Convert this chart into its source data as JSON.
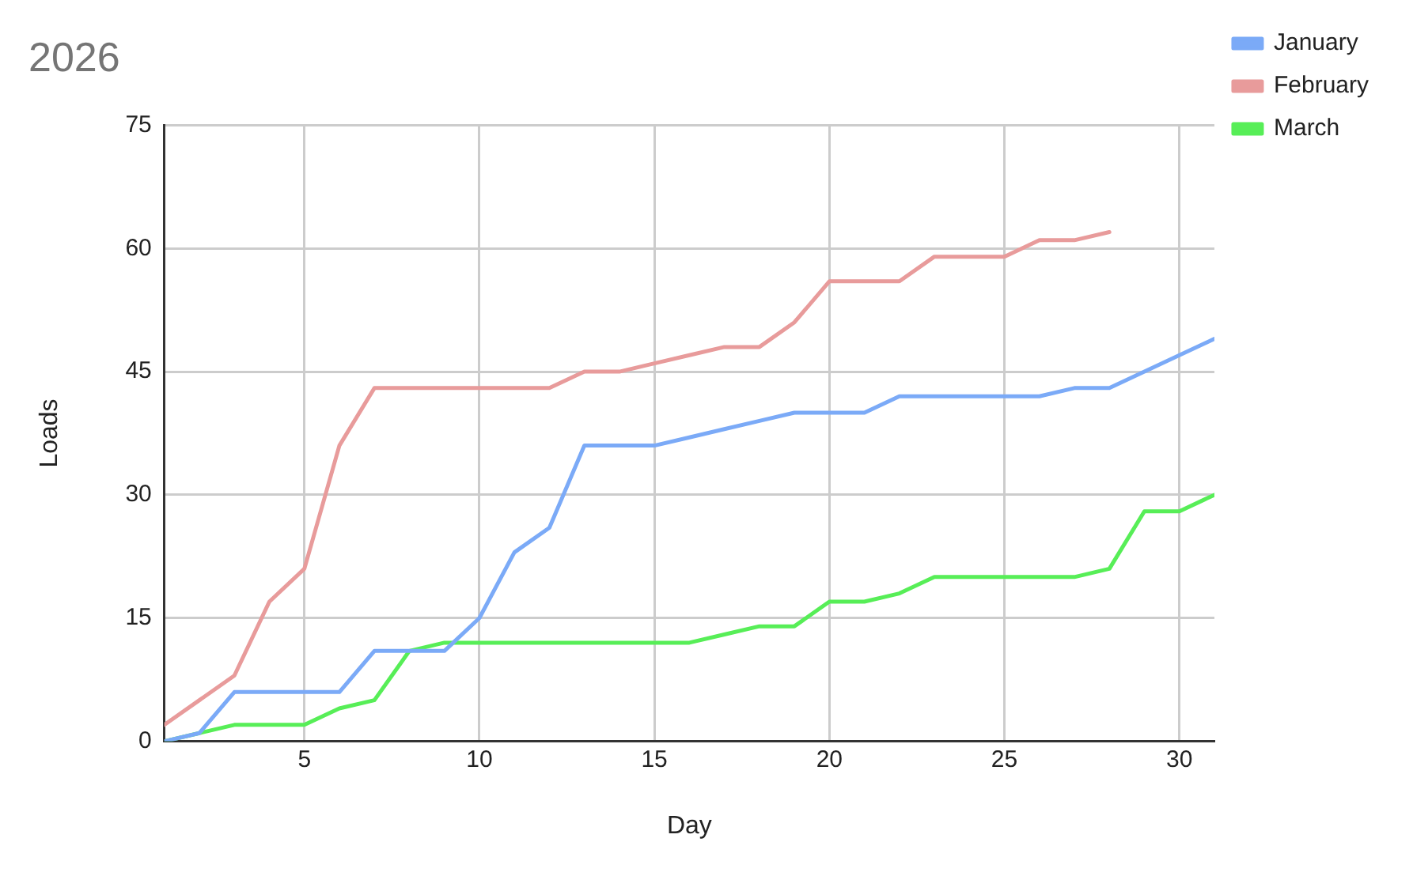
{
  "chart_data": {
    "type": "line",
    "title": "2026",
    "xlabel": "Day",
    "ylabel": "Loads",
    "x": [
      1,
      2,
      3,
      4,
      5,
      6,
      7,
      8,
      9,
      10,
      11,
      12,
      13,
      14,
      15,
      16,
      17,
      18,
      19,
      20,
      21,
      22,
      23,
      24,
      25,
      26,
      27,
      28,
      29,
      30,
      31
    ],
    "series": [
      {
        "name": "January",
        "color": "#7baaf7",
        "values": [
          0,
          1,
          6,
          6,
          6,
          6,
          11,
          11,
          11,
          15,
          23,
          26,
          36,
          36,
          36,
          37,
          38,
          39,
          40,
          40,
          40,
          42,
          42,
          42,
          42,
          42,
          43,
          43,
          45,
          47,
          49
        ]
      },
      {
        "name": "February",
        "color": "#e89b9b",
        "values": [
          2,
          5,
          8,
          17,
          21,
          36,
          43,
          43,
          43,
          43,
          43,
          43,
          45,
          45,
          46,
          47,
          48,
          48,
          51,
          56,
          56,
          56,
          59,
          59,
          59,
          61,
          61,
          62,
          null,
          null,
          null
        ]
      },
      {
        "name": "March",
        "color": "#57ee57",
        "values": [
          0,
          1,
          2,
          2,
          2,
          4,
          5,
          11,
          12,
          12,
          12,
          12,
          12,
          12,
          12,
          12,
          13,
          14,
          14,
          17,
          17,
          18,
          20,
          20,
          20,
          20,
          20,
          21,
          28,
          28,
          30
        ]
      }
    ],
    "xlim": [
      1,
      31
    ],
    "xticks": [
      5,
      10,
      15,
      20,
      25,
      30
    ],
    "ylim": [
      0,
      75
    ],
    "yticks": [
      0,
      15,
      30,
      45,
      60,
      75
    ],
    "grid": true,
    "legend": "top right",
    "marker": "none",
    "line_style": "solid"
  }
}
